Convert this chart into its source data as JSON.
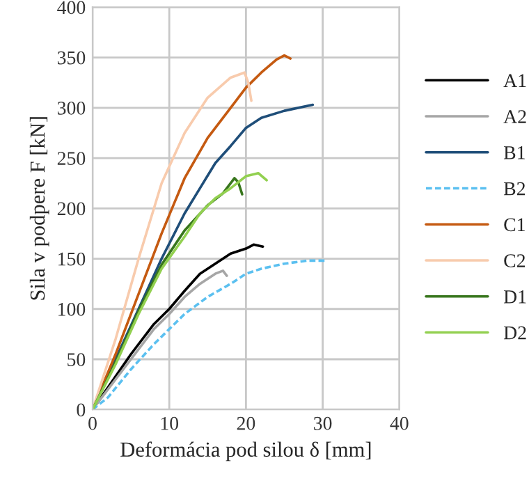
{
  "chart_data": {
    "type": "line",
    "xlabel": "Deformácia pod silou δ [mm]",
    "ylabel": "Sila v podpere F [kN]",
    "xlim": [
      0,
      40
    ],
    "xticks": [
      0,
      10,
      20,
      30,
      40
    ],
    "ylim": [
      0,
      400
    ],
    "yticks": [
      0,
      50,
      100,
      150,
      200,
      250,
      300,
      350,
      400
    ],
    "grid": true,
    "legend": "right",
    "marker": "none",
    "series": [
      {
        "name": "A1",
        "color": "#000000",
        "x": [
          0,
          2,
          5,
          8,
          10,
          12,
          14,
          16,
          18,
          20,
          21,
          22.2
        ],
        "values": [
          0,
          22,
          55,
          85,
          100,
          118,
          135,
          145,
          155,
          160,
          164,
          162
        ]
      },
      {
        "name": "A2",
        "color": "#a6a6a6",
        "x": [
          0,
          5,
          8,
          10,
          12,
          14,
          16,
          17,
          17.5
        ],
        "values": [
          0,
          50,
          80,
          95,
          112,
          125,
          135,
          138,
          133
        ]
      },
      {
        "name": "B1",
        "color": "#1f4e79",
        "x": [
          0,
          3,
          6,
          9,
          12,
          14,
          16,
          18,
          20,
          22,
          25,
          28.7
        ],
        "values": [
          0,
          50,
          100,
          150,
          195,
          220,
          245,
          262,
          280,
          290,
          297,
          303
        ]
      },
      {
        "name": "B2",
        "color": "#5bc0f0",
        "line_style": "dashed",
        "x": [
          0,
          2,
          5,
          8,
          10,
          12,
          15,
          18,
          20,
          22,
          25,
          28,
          30.5
        ],
        "values": [
          0,
          12,
          40,
          65,
          80,
          95,
          112,
          125,
          135,
          140,
          145,
          148,
          148
        ]
      },
      {
        "name": "C1",
        "color": "#c55a11",
        "x": [
          0,
          3,
          6,
          9,
          12,
          15,
          18,
          20,
          22,
          24,
          25,
          25.8
        ],
        "values": [
          0,
          55,
          115,
          175,
          230,
          270,
          300,
          320,
          335,
          348,
          352,
          349
        ]
      },
      {
        "name": "C2",
        "color": "#f8cbad",
        "x": [
          0,
          3,
          6,
          9,
          12,
          15,
          18,
          19.8,
          20.3,
          20.7
        ],
        "values": [
          0,
          70,
          150,
          225,
          275,
          310,
          330,
          335,
          325,
          307
        ]
      },
      {
        "name": "D1",
        "color": "#38761d",
        "x": [
          0,
          3,
          6,
          9,
          12,
          15,
          17,
          18.5,
          19,
          19.5
        ],
        "values": [
          0,
          47,
          98,
          144,
          178,
          203,
          215,
          230,
          226,
          214
        ]
      },
      {
        "name": "D2",
        "color": "#92d050",
        "x": [
          0,
          3,
          6,
          9,
          12,
          14,
          16,
          18,
          20,
          21.6,
          22.7
        ],
        "values": [
          0,
          45,
          95,
          140,
          172,
          195,
          210,
          220,
          232,
          235,
          228
        ]
      }
    ]
  }
}
